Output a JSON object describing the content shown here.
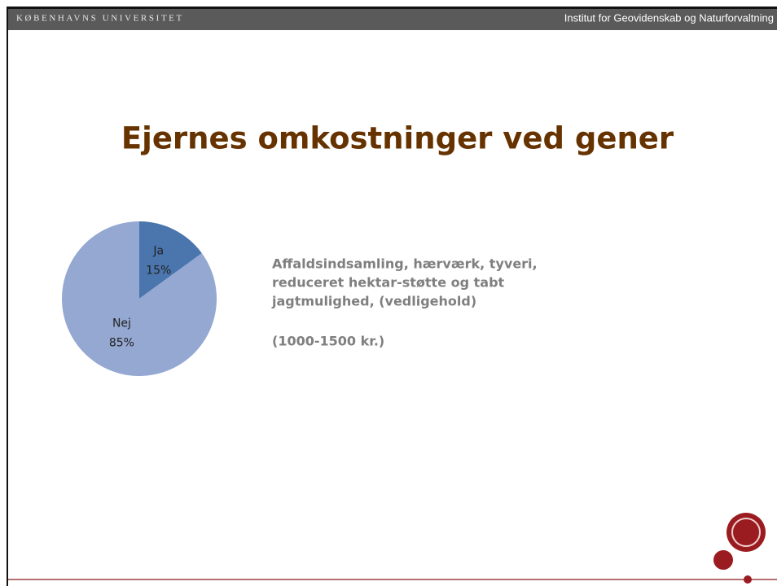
{
  "header": {
    "university": "KØBENHAVNS UNIVERSITET",
    "institute": "Institut for Geovidenskab og Naturforvaltning"
  },
  "chart_data": {
    "type": "pie",
    "title": "Ejernes omkostninger ved gener",
    "categories": [
      "Ja",
      "Nej"
    ],
    "values": [
      15,
      85
    ],
    "value_labels": [
      "15%",
      "85%"
    ],
    "colors": [
      "#4a76ad",
      "#94a8d2"
    ]
  },
  "body": {
    "lines": [
      "Affaldsindsamling, hærværk, tyveri,",
      "reduceret hektar-støtte og tabt",
      "jagtmulighed, (vedligehold)"
    ],
    "note": "(1000-1500 kr.)"
  }
}
